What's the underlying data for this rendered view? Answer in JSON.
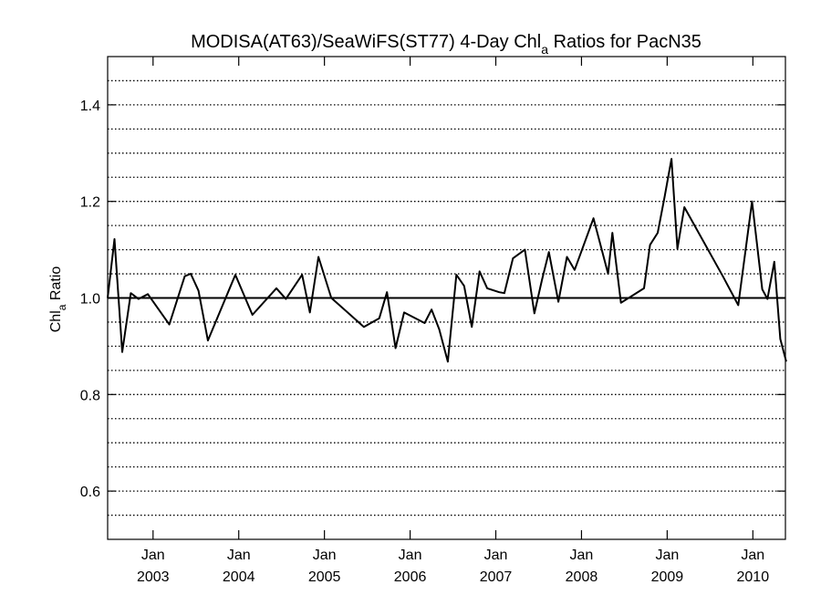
{
  "chart_data": {
    "type": "line",
    "title": "MODISA(AT63)/SeaWiFS(ST77) 4-Day Chl",
    "title_subscript": "a",
    "title_suffix": " Ratios for PacN35",
    "ylabel": "Chl",
    "ylabel_subscript": "a",
    "ylabel_suffix": " Ratio",
    "xlim": [
      2002.47,
      2010.38
    ],
    "ylim": [
      0.5,
      1.5
    ],
    "yticks": [
      {
        "value": 0.6,
        "label": "0.6"
      },
      {
        "value": 0.8,
        "label": "0.8"
      },
      {
        "value": 1.0,
        "label": "1.0"
      },
      {
        "value": 1.2,
        "label": "1.2"
      },
      {
        "value": 1.4,
        "label": "1.4"
      }
    ],
    "grid_lines": [
      0.55,
      0.6,
      0.65,
      0.7,
      0.75,
      0.8,
      0.85,
      0.9,
      0.95,
      1.05,
      1.1,
      1.15,
      1.2,
      1.25,
      1.3,
      1.35,
      1.4,
      1.45
    ],
    "grid_style": "dotted horizontal",
    "reference_line": 1.0,
    "xticks": [
      {
        "value": 2003.0,
        "month": "Jan",
        "year": "2003"
      },
      {
        "value": 2004.0,
        "month": "Jan",
        "year": "2004"
      },
      {
        "value": 2005.0,
        "month": "Jan",
        "year": "2005"
      },
      {
        "value": 2006.0,
        "month": "Jan",
        "year": "2006"
      },
      {
        "value": 2007.0,
        "month": "Jan",
        "year": "2007"
      },
      {
        "value": 2008.0,
        "month": "Jan",
        "year": "2008"
      },
      {
        "value": 2009.0,
        "month": "Jan",
        "year": "2009"
      },
      {
        "value": 2010.0,
        "month": "Jan",
        "year": "2010"
      }
    ],
    "x": [
      2002.47,
      2002.55,
      2002.64,
      2002.74,
      2002.83,
      2002.94,
      2003.19,
      2003.37,
      2003.44,
      2003.53,
      2003.64,
      2003.96,
      2004.16,
      2004.44,
      2004.55,
      2004.74,
      2004.83,
      2004.93,
      2005.08,
      2005.46,
      2005.64,
      2005.73,
      2005.83,
      2005.93,
      2006.17,
      2006.25,
      2006.34,
      2006.44,
      2006.54,
      2006.63,
      2006.72,
      2006.81,
      2006.9,
      2007.04,
      2007.1,
      2007.2,
      2007.34,
      2007.45,
      2007.54,
      2007.62,
      2007.73,
      2007.83,
      2007.92,
      2008.14,
      2008.31,
      2008.36,
      2008.46,
      2008.73,
      2008.8,
      2008.89,
      2008.97,
      2009.05,
      2009.12,
      2009.2,
      2009.65,
      2009.83,
      2009.99,
      2010.11,
      2010.17,
      2010.25,
      2010.32,
      2010.39
    ],
    "y": [
      1.0,
      1.122,
      0.888,
      1.01,
      0.998,
      1.008,
      0.945,
      1.045,
      1.05,
      1.015,
      0.912,
      1.048,
      0.965,
      1.02,
      0.998,
      1.048,
      0.97,
      1.085,
      1.0,
      0.94,
      0.958,
      1.012,
      0.896,
      0.97,
      0.948,
      0.976,
      0.935,
      0.868,
      1.048,
      1.025,
      0.94,
      1.055,
      1.02,
      1.012,
      1.01,
      1.082,
      1.1,
      0.968,
      1.038,
      1.095,
      0.992,
      1.085,
      1.058,
      1.165,
      1.05,
      1.135,
      0.99,
      1.02,
      1.11,
      1.135,
      1.21,
      1.288,
      1.102,
      1.188,
      1.045,
      0.985,
      1.2,
      1.018,
      0.998,
      1.075,
      0.915,
      0.868
    ],
    "grid": true
  }
}
